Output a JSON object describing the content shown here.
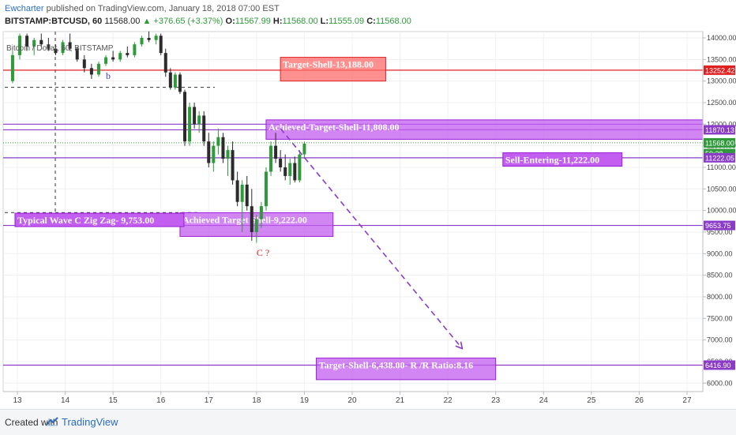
{
  "header": {
    "publisher_user": "Ewcharter",
    "publisher_text": " published on TradingView.com, January 18, 2018 07:00 EST",
    "symbol": "BITSTAMP:BTCUSD, 60",
    "last": "11568.00",
    "change": "+376.65 (+3.37%)",
    "o_label": "O:",
    "o_value": "11567.99",
    "h_label": "H:",
    "h_value": "11568.00",
    "l_label": "L:",
    "l_value": "11555.09",
    "c_label": "C:",
    "c_value": "11568.00"
  },
  "legend": "Bitcoin / Dollar, 60, BITSTAMP",
  "footer": {
    "created_with": "Created with",
    "brand": "TradingView"
  },
  "colors": {
    "up": "#2e9a3a",
    "down": "#2b2b2b",
    "zone": "#c25ef0",
    "zone_border": "#9a1fd6",
    "target": "#ff6b6b",
    "target_border": "#e02020",
    "red_line": "#e02020",
    "purple_line": "#8a3cc9"
  },
  "chart_data": {
    "type": "candlestick",
    "x_tick_labels": [
      "13",
      "14",
      "15",
      "16",
      "17",
      "18",
      "19",
      "20",
      "21",
      "22",
      "23",
      "24",
      "25",
      "26",
      "27"
    ],
    "y_tick_labels": [
      "14000.00",
      "13500.00",
      "13000.00",
      "12500.00",
      "12000.00",
      "11500.00",
      "11000.00",
      "10500.00",
      "10000.00",
      "9500.00",
      "9000.00",
      "8500.00",
      "8000.00",
      "7500.00",
      "7000.00",
      "6500.00",
      "6000.00"
    ],
    "price_badges": [
      {
        "label": "13252.42",
        "value": 13252.42,
        "color": "#e02020"
      },
      {
        "label": "11870.13",
        "value": 11870.13,
        "color": "#8a3cc9"
      },
      {
        "label": "11568.00",
        "value": 11568.0,
        "color": "#2e9a3a"
      },
      {
        "label": "59:38",
        "value": 11320,
        "color": "#2e9a3a"
      },
      {
        "label": "11222.05",
        "value": 11222.05,
        "color": "#8a3cc9"
      },
      {
        "label": "9653.75",
        "value": 9653.75,
        "color": "#8a3cc9"
      },
      {
        "label": "6416.90",
        "value": 6416.9,
        "color": "#8a3cc9"
      }
    ],
    "horizontal_lines": [
      {
        "value": 13252.42,
        "color": "#e02020"
      },
      {
        "value": 12000,
        "color": "#8a3cc9"
      },
      {
        "value": 11870.13,
        "color": "#8a3cc9"
      },
      {
        "value": 11222.05,
        "color": "#8a3cc9"
      },
      {
        "value": 9653.75,
        "color": "#8a3cc9"
      },
      {
        "value": 6416.9,
        "color": "#8a3cc9"
      }
    ],
    "candles": [
      {
        "x": 12.9,
        "o": 13000,
        "h": 13700,
        "l": 12950,
        "c": 13600
      },
      {
        "x": 13.05,
        "o": 13600,
        "h": 14100,
        "l": 13500,
        "c": 14050
      },
      {
        "x": 13.2,
        "o": 14050,
        "h": 14100,
        "l": 13700,
        "c": 13800
      },
      {
        "x": 13.35,
        "o": 13800,
        "h": 14000,
        "l": 13600,
        "c": 13950
      },
      {
        "x": 13.5,
        "o": 13950,
        "h": 14100,
        "l": 13800,
        "c": 13850
      },
      {
        "x": 13.65,
        "o": 13850,
        "h": 14000,
        "l": 13700,
        "c": 13750
      },
      {
        "x": 13.8,
        "o": 13750,
        "h": 13850,
        "l": 13600,
        "c": 13650
      },
      {
        "x": 13.95,
        "o": 13650,
        "h": 13950,
        "l": 13600,
        "c": 13900
      },
      {
        "x": 14.1,
        "o": 13900,
        "h": 14100,
        "l": 13700,
        "c": 13750
      },
      {
        "x": 14.25,
        "o": 13750,
        "h": 13800,
        "l": 13450,
        "c": 13500
      },
      {
        "x": 14.4,
        "o": 13500,
        "h": 13600,
        "l": 13200,
        "c": 13300
      },
      {
        "x": 14.55,
        "o": 13300,
        "h": 13400,
        "l": 13050,
        "c": 13150
      },
      {
        "x": 14.7,
        "o": 13150,
        "h": 13450,
        "l": 13100,
        "c": 13400
      },
      {
        "x": 14.85,
        "o": 13400,
        "h": 13600,
        "l": 13350,
        "c": 13550
      },
      {
        "x": 15.0,
        "o": 13550,
        "h": 13700,
        "l": 13450,
        "c": 13500
      },
      {
        "x": 15.15,
        "o": 13500,
        "h": 13700,
        "l": 13450,
        "c": 13650
      },
      {
        "x": 15.3,
        "o": 13650,
        "h": 13800,
        "l": 13550,
        "c": 13600
      },
      {
        "x": 15.45,
        "o": 13600,
        "h": 13900,
        "l": 13550,
        "c": 13850
      },
      {
        "x": 15.6,
        "o": 13850,
        "h": 14050,
        "l": 13800,
        "c": 14000
      },
      {
        "x": 15.75,
        "o": 14000,
        "h": 14150,
        "l": 13900,
        "c": 13950
      },
      {
        "x": 15.9,
        "o": 13950,
        "h": 14100,
        "l": 13850,
        "c": 14050
      },
      {
        "x": 16.0,
        "o": 14050,
        "h": 14100,
        "l": 13600,
        "c": 13650
      },
      {
        "x": 16.1,
        "o": 13650,
        "h": 13750,
        "l": 13100,
        "c": 13200
      },
      {
        "x": 16.2,
        "o": 13200,
        "h": 13300,
        "l": 12800,
        "c": 12850
      },
      {
        "x": 16.3,
        "o": 12850,
        "h": 13200,
        "l": 12800,
        "c": 13150
      },
      {
        "x": 16.4,
        "o": 13150,
        "h": 13200,
        "l": 12700,
        "c": 12750
      },
      {
        "x": 16.5,
        "o": 12750,
        "h": 12800,
        "l": 11500,
        "c": 11600
      },
      {
        "x": 16.6,
        "o": 11600,
        "h": 12500,
        "l": 11500,
        "c": 12400
      },
      {
        "x": 16.7,
        "o": 12400,
        "h": 12500,
        "l": 11900,
        "c": 12000
      },
      {
        "x": 16.8,
        "o": 12000,
        "h": 12300,
        "l": 11800,
        "c": 12200
      },
      {
        "x": 16.9,
        "o": 12200,
        "h": 12300,
        "l": 11500,
        "c": 11600
      },
      {
        "x": 17.0,
        "o": 11600,
        "h": 11800,
        "l": 11000,
        "c": 11100
      },
      {
        "x": 17.1,
        "o": 11100,
        "h": 11600,
        "l": 10900,
        "c": 11500
      },
      {
        "x": 17.2,
        "o": 11500,
        "h": 11900,
        "l": 11300,
        "c": 11700
      },
      {
        "x": 17.3,
        "o": 11700,
        "h": 11800,
        "l": 11100,
        "c": 11200
      },
      {
        "x": 17.4,
        "o": 11200,
        "h": 11500,
        "l": 10800,
        "c": 11400
      },
      {
        "x": 17.5,
        "o": 11400,
        "h": 11600,
        "l": 10600,
        "c": 10700
      },
      {
        "x": 17.6,
        "o": 10700,
        "h": 10900,
        "l": 10100,
        "c": 10200
      },
      {
        "x": 17.7,
        "o": 10200,
        "h": 10700,
        "l": 9500,
        "c": 10600
      },
      {
        "x": 17.8,
        "o": 10600,
        "h": 10800,
        "l": 10000,
        "c": 10100
      },
      {
        "x": 17.9,
        "o": 10100,
        "h": 10500,
        "l": 9300,
        "c": 9500
      },
      {
        "x": 18.0,
        "o": 9500,
        "h": 9900,
        "l": 9250,
        "c": 9800
      },
      {
        "x": 18.1,
        "o": 9800,
        "h": 10200,
        "l": 9600,
        "c": 10100
      },
      {
        "x": 18.2,
        "o": 10100,
        "h": 11000,
        "l": 10000,
        "c": 10900
      },
      {
        "x": 18.3,
        "o": 10900,
        "h": 11600,
        "l": 10800,
        "c": 11500
      },
      {
        "x": 18.4,
        "o": 11500,
        "h": 11800,
        "l": 11100,
        "c": 11200
      },
      {
        "x": 18.5,
        "o": 11200,
        "h": 11400,
        "l": 10900,
        "c": 11000
      },
      {
        "x": 18.6,
        "o": 11000,
        "h": 11300,
        "l": 10700,
        "c": 10800
      },
      {
        "x": 18.7,
        "o": 10800,
        "h": 11200,
        "l": 10600,
        "c": 11100
      },
      {
        "x": 18.8,
        "o": 11100,
        "h": 11250,
        "l": 10650,
        "c": 10700
      },
      {
        "x": 18.9,
        "o": 10700,
        "h": 11400,
        "l": 10650,
        "c": 11300
      },
      {
        "x": 19.0,
        "o": 11300,
        "h": 11600,
        "l": 11200,
        "c": 11550
      }
    ],
    "zones": [
      {
        "label": "Target-Shell-13,188.00",
        "x1": 18.5,
        "x2": 20.7,
        "y1": 13550,
        "y2": 13000,
        "kind": "target"
      },
      {
        "label": "Achieved-Target-Shell-11,808.00",
        "x1": 18.2,
        "x2": 27.5,
        "y1": 12100,
        "y2": 11650,
        "kind": "zone"
      },
      {
        "label": "Achieved Target Shell-9,222.00",
        "x1": 16.4,
        "x2": 19.6,
        "y1": 9950,
        "y2": 9400,
        "kind": "zone"
      },
      {
        "label": "Target-Shell-6,438.00- R /R Ratio:8.16",
        "x1": 19.25,
        "x2": 23.0,
        "y1": 6580,
        "y2": 6080,
        "kind": "zone"
      }
    ],
    "labels": [
      {
        "text": "Sell-Entering-11,222.00",
        "x": 23.2,
        "y": 11100
      },
      {
        "text": "Typical Wave  C Zig Zag- 9,753.00",
        "x": 13.0,
        "y": 9700
      }
    ],
    "markers": [
      {
        "text": "b",
        "x": 14.85,
        "y": 13050,
        "color": "#3b3bd0"
      },
      {
        "text": "C ?",
        "x": 18.0,
        "y": 8950,
        "color": "#e02020"
      }
    ],
    "projection": {
      "from_x": 18.5,
      "from_y": 11900,
      "to_x": 22.3,
      "to_y": 6800
    },
    "price_axis_range": [
      5950,
      14150
    ],
    "time_axis_range": [
      12.8,
      28.0
    ]
  }
}
